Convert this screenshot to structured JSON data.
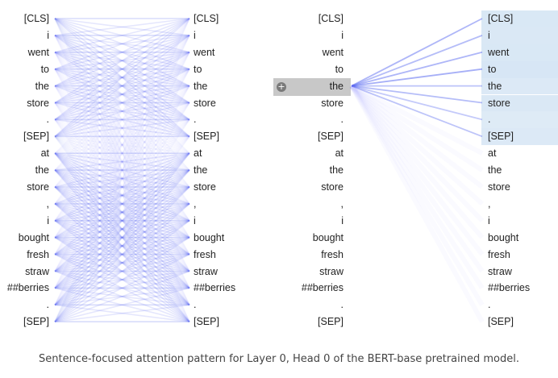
{
  "tokens": [
    "[CLS]",
    "i",
    "went",
    "to",
    "the",
    "store",
    ".",
    "[SEP]",
    "at",
    "the",
    "store",
    ",",
    "i",
    "bought",
    "fresh",
    "straw",
    "##berries",
    ".",
    "[SEP]"
  ],
  "caption": "Sentence-focused attention pattern for Layer 0, Head 0 of the BERT-base pretrained model.",
  "selected": {
    "token_index": 4,
    "icon": "plus-icon"
  },
  "colors": {
    "line": "#5b6cf0",
    "highlight": "#9ec3e6",
    "select_bar": "#c8c8c8"
  },
  "focus_weights": [
    0.55,
    0.5,
    0.55,
    0.6,
    0.45,
    0.5,
    0.4,
    0.45,
    0.06,
    0.05,
    0.05,
    0.04,
    0.05,
    0.05,
    0.04,
    0.04,
    0.05,
    0.04,
    0.04
  ]
}
